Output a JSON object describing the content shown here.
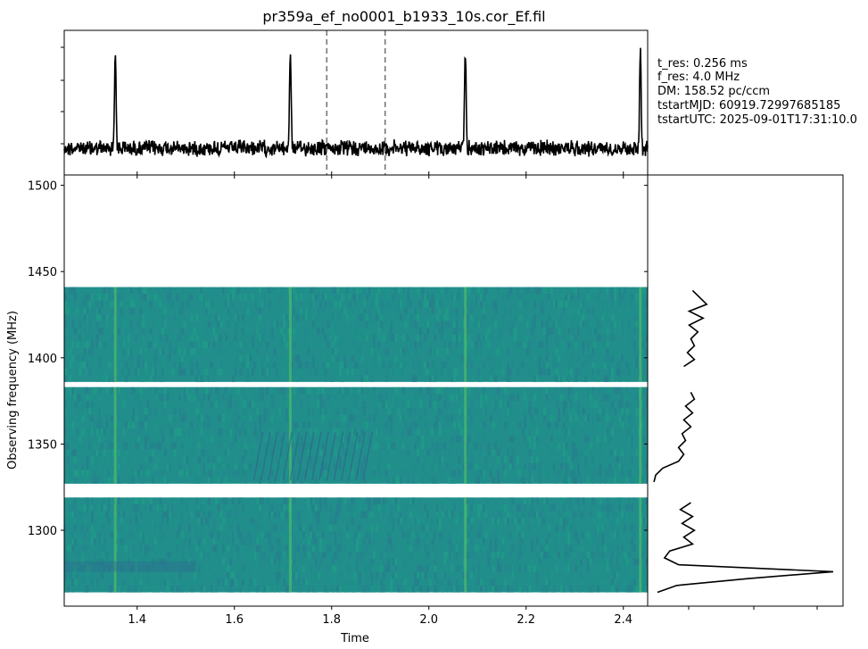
{
  "title": "pr359a_ef_no0001_b1933_10s.cor_Ef.fil",
  "info_lines": [
    "t_res: 0.256 ms",
    "f_res: 4.0 MHz",
    "DM: 158.52 pc/ccm",
    "tstartMJD: 60919.72997685185",
    "tstartUTC: 2025-09-01T17:31:10.0"
  ],
  "colors": {
    "trace": "#000000",
    "marker": "#777777",
    "waterfall_base": "#218e8b",
    "pulse": "#5cc863",
    "dark": "#30688e"
  },
  "chart_data": [
    {
      "type": "line",
      "name": "time-series",
      "xlim": [
        1.25,
        2.45
      ],
      "markers_x": [
        1.79,
        1.91
      ],
      "pulses_x": [
        1.355,
        1.715,
        2.075,
        2.435
      ],
      "grid": false
    },
    {
      "type": "heatmap",
      "name": "waterfall",
      "xlabel": "Time",
      "ylabel": "Observing frequency (MHz)",
      "xlim": [
        1.25,
        2.45
      ],
      "ylim": [
        1256,
        1506
      ],
      "xticks": [
        1.4,
        1.6,
        1.8,
        2.0,
        2.2,
        2.4
      ],
      "xtick_labels": [
        "1.4",
        "1.6",
        "1.8",
        "2.0",
        "2.2",
        "2.4"
      ],
      "yticks": [
        1300,
        1350,
        1400,
        1450,
        1500
      ],
      "ytick_labels": [
        "1300",
        "1350",
        "1400",
        "1450",
        "1500"
      ],
      "bands": [
        [
          1264,
          1319
        ],
        [
          1327,
          1383
        ],
        [
          1386,
          1441
        ]
      ],
      "pulses_x": [
        1.355,
        1.715,
        2.075,
        2.435
      ],
      "grid": false
    },
    {
      "type": "line",
      "name": "spectrum",
      "y": [
        1264,
        1268,
        1272,
        1276,
        1280,
        1284,
        1288,
        1292,
        1296,
        1300,
        1304,
        1308,
        1312,
        1316,
        1328,
        1332,
        1336,
        1340,
        1344,
        1348,
        1352,
        1356,
        1360,
        1364,
        1368,
        1372,
        1376,
        1380,
        1395,
        1399,
        1403,
        1407,
        1411,
        1415,
        1419,
        1423,
        1427,
        1431,
        1435,
        1439
      ],
      "x": [
        0.0,
        0.11,
        0.52,
        1.0,
        0.12,
        0.04,
        0.07,
        0.2,
        0.15,
        0.21,
        0.14,
        0.2,
        0.13,
        0.19,
        -0.02,
        -0.01,
        0.03,
        0.12,
        0.15,
        0.12,
        0.16,
        0.14,
        0.19,
        0.15,
        0.2,
        0.16,
        0.21,
        0.19,
        0.15,
        0.21,
        0.17,
        0.21,
        0.19,
        0.23,
        0.18,
        0.26,
        0.18,
        0.28,
        0.24,
        0.2
      ],
      "grid": false
    }
  ]
}
